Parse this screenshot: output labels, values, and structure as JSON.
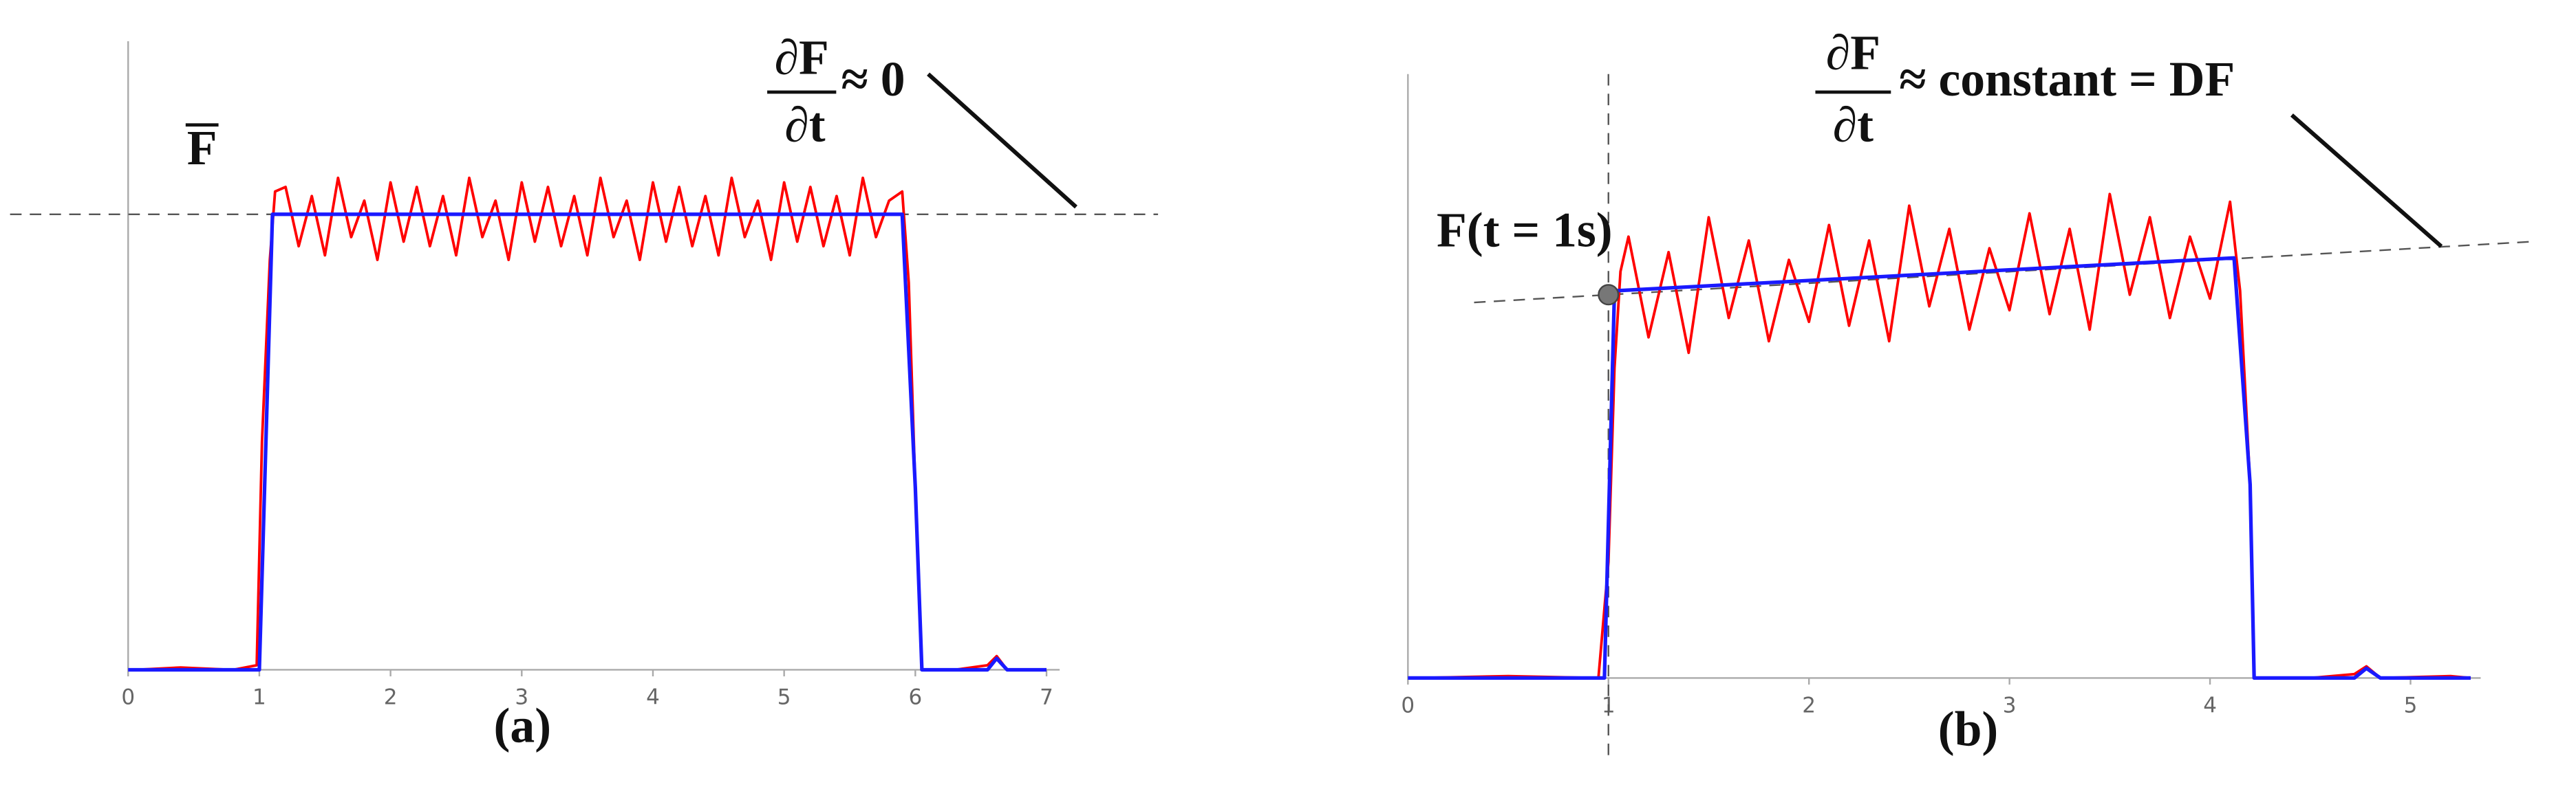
{
  "chart_data": [
    {
      "type": "line",
      "label": "(a)",
      "xlim": [
        0,
        7.1
      ],
      "ylim": [
        0,
        1.38
      ],
      "xticks": [
        0,
        1,
        2,
        3,
        4,
        5,
        6,
        7
      ],
      "annotations": [
        "F",
        "∂F",
        "∂t",
        "≈ 0"
      ],
      "series": [
        {
          "color": "#ff0000",
          "x": [
            0.05,
            0.4,
            0.8,
            0.98,
            1.02,
            1.08,
            1.12,
            1.2,
            1.3,
            1.4,
            1.5,
            1.6,
            1.7,
            1.8,
            1.9,
            2.0,
            2.1,
            2.2,
            2.3,
            2.4,
            2.5,
            2.6,
            2.7,
            2.8,
            2.9,
            3.0,
            3.1,
            3.2,
            3.3,
            3.4,
            3.5,
            3.6,
            3.7,
            3.8,
            3.9,
            4.0,
            4.1,
            4.2,
            4.3,
            4.4,
            4.5,
            4.6,
            4.7,
            4.8,
            4.9,
            5.0,
            5.1,
            5.2,
            5.3,
            5.4,
            5.5,
            5.6,
            5.7,
            5.8,
            5.9,
            5.95,
            6.0,
            6.05,
            6.3,
            6.55,
            6.62,
            6.7,
            7.0
          ],
          "values": [
            0,
            0.005,
            0,
            0.01,
            0.5,
            0.9,
            1.05,
            1.06,
            0.93,
            1.04,
            0.91,
            1.08,
            0.95,
            1.03,
            0.9,
            1.07,
            0.94,
            1.06,
            0.93,
            1.04,
            0.91,
            1.08,
            0.95,
            1.03,
            0.9,
            1.07,
            0.94,
            1.06,
            0.93,
            1.04,
            0.91,
            1.08,
            0.95,
            1.03,
            0.9,
            1.07,
            0.94,
            1.06,
            0.93,
            1.04,
            0.91,
            1.08,
            0.95,
            1.03,
            0.9,
            1.07,
            0.94,
            1.06,
            0.93,
            1.04,
            0.91,
            1.08,
            0.95,
            1.03,
            1.05,
            0.85,
            0.4,
            0,
            0,
            0.01,
            0.03,
            0,
            0
          ]
        },
        {
          "color": "#1a1aff",
          "x": [
            0,
            1,
            1.1,
            5.9,
            6.0,
            6.05,
            6.55,
            6.62,
            6.7,
            7.0
          ],
          "values": [
            0,
            0,
            1.0,
            1.0,
            0.4,
            0,
            0,
            0.025,
            0,
            0
          ]
        }
      ],
      "reference_lines": [
        {
          "x": [
            -0.9,
            7.85
          ],
          "y": [
            1.0,
            1.0
          ]
        }
      ]
    },
    {
      "type": "line",
      "label": "(b)",
      "xlim": [
        0,
        5.35
      ],
      "ylim": [
        0,
        1.56
      ],
      "xticks": [
        0,
        1,
        2,
        3,
        4,
        5
      ],
      "annotations": [
        "F(t = 1s)",
        "∂F",
        "∂t",
        "≈ constant = DF"
      ],
      "series": [
        {
          "color": "#ff0000",
          "x": [
            0.05,
            0.5,
            0.95,
            1.0,
            1.03,
            1.06,
            1.1,
            1.2,
            1.3,
            1.4,
            1.5,
            1.6,
            1.7,
            1.8,
            1.9,
            2.0,
            2.1,
            2.2,
            2.3,
            2.4,
            2.5,
            2.6,
            2.7,
            2.8,
            2.9,
            3.0,
            3.1,
            3.2,
            3.3,
            3.4,
            3.5,
            3.6,
            3.7,
            3.8,
            3.9,
            4.0,
            4.1,
            4.15,
            4.2,
            4.22,
            4.5,
            4.72,
            4.78,
            4.85,
            5.2,
            5.3
          ],
          "values": [
            0,
            0.005,
            0,
            0.3,
            0.8,
            1.05,
            1.14,
            0.88,
            1.1,
            0.84,
            1.19,
            0.93,
            1.13,
            0.87,
            1.08,
            0.92,
            1.17,
            0.91,
            1.13,
            0.87,
            1.22,
            0.96,
            1.16,
            0.9,
            1.11,
            0.95,
            1.2,
            0.94,
            1.16,
            0.9,
            1.25,
            0.99,
            1.19,
            0.93,
            1.14,
            0.98,
            1.23,
            1.0,
            0.5,
            0,
            0,
            0.01,
            0.03,
            0,
            0.005,
            0
          ]
        },
        {
          "color": "#1a1aff",
          "x": [
            0,
            0.98,
            1.03,
            4.12,
            4.2,
            4.22,
            4.72,
            4.78,
            4.85,
            5.3
          ],
          "values": [
            0,
            0,
            1.0,
            1.085,
            0.5,
            0,
            0,
            0.025,
            0,
            0
          ]
        }
      ],
      "reference_lines": [
        {
          "x": [
            0.33,
            5.6
          ],
          "y": [
            0.97,
            1.127
          ]
        },
        {
          "x": [
            1,
            1
          ],
          "y": [
            1.56,
            -0.22
          ]
        }
      ],
      "point": {
        "x": 1,
        "y": 0.99
      }
    }
  ]
}
